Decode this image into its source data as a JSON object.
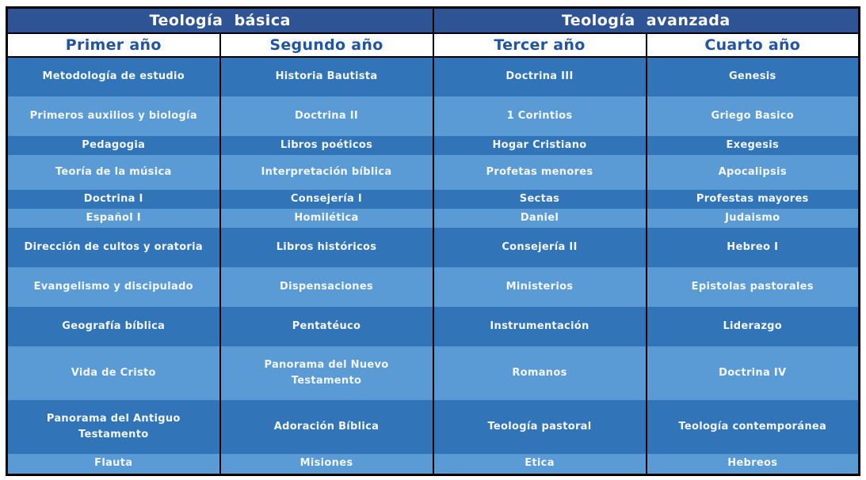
{
  "header": {
    "sections": [
      {
        "title": "Teología básica"
      },
      {
        "title": "Teología avanzada"
      }
    ],
    "years": [
      "Primer año",
      "Segundo año",
      "Tercer año",
      "Cuarto año"
    ]
  },
  "courses": {
    "rows": [
      [
        "Metodología de estudio",
        "Historia Bautista",
        "Doctrina III",
        "Genesis"
      ],
      [
        "Primeros auxilios y biología",
        "Doctrina II",
        "1 Corintios",
        "Griego Basico"
      ],
      [
        "Pedagogia",
        "Libros poéticos",
        "Hogar Cristiano",
        "Exegesis"
      ],
      [
        "Teoría de la música",
        "Interpretación bíblica",
        "Profetas menores",
        "Apocalipsis"
      ],
      [
        "Doctrina I",
        "Consejería I",
        "Sectas",
        "Profestas mayores"
      ],
      [
        "Español I",
        "Homilética",
        "Daniel",
        "Judaismo"
      ],
      [
        "Dirección de cultos y oratoria",
        "Libros históricos",
        "Consejería II",
        "Hebreo I"
      ],
      [
        "Evangelismo y discipulado",
        "Dispensaciones",
        "Ministerios",
        "Epistolas pastorales"
      ],
      [
        "Geografía bíblica",
        "Pentatéuco",
        "Instrumentación",
        "Liderazgo"
      ],
      [
        "Vida de Cristo",
        "Panorama del Nuevo\nTestamento",
        "Romanos",
        "Doctrina IV"
      ],
      [
        "Panorama del Antiguo\nTestamento",
        "Adoración Bíblica",
        "Teología pastoral",
        "Teología contemporánea"
      ],
      [
        "Flauta",
        "Misiones",
        "Etica",
        "Hebreos"
      ]
    ]
  },
  "colors": {
    "header_band_bg": "#2F5496",
    "header_band_text": "#FFFFFF",
    "year_text": "#2155A4",
    "row_dark": "#3274B8",
    "row_light": "#5B9BD5",
    "cell_text": "#F2F6FB",
    "border": "#000000"
  }
}
